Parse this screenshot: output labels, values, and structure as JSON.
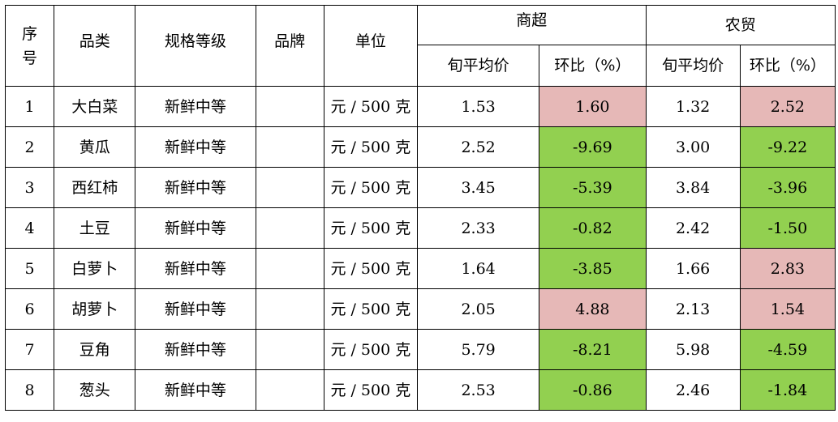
{
  "headers": {
    "seq_line1": "序",
    "seq_line2": "号",
    "category": "品类",
    "spec": "规格等级",
    "brand": "品牌",
    "unit": "单位",
    "supermarket": "商超",
    "market": "农贸",
    "avg_price": "旬平均价",
    "mom": "环比（%）"
  },
  "colors": {
    "increase": "#e6b8b7",
    "decrease": "#92d050"
  },
  "rows": [
    {
      "seq": "1",
      "category": "大白菜",
      "spec": "新鲜中等",
      "brand": "",
      "unit": "元 / 500 克",
      "sm_avg": "1.53",
      "sm_mom": "1.60",
      "sm_trend": "up",
      "mk_avg": "1.32",
      "mk_mom": "2.52",
      "mk_trend": "up"
    },
    {
      "seq": "2",
      "category": "黄瓜",
      "spec": "新鲜中等",
      "brand": "",
      "unit": "元 / 500 克",
      "sm_avg": "2.52",
      "sm_mom": "-9.69",
      "sm_trend": "down",
      "mk_avg": "3.00",
      "mk_mom": "-9.22",
      "mk_trend": "down"
    },
    {
      "seq": "3",
      "category": "西红柿",
      "spec": "新鲜中等",
      "brand": "",
      "unit": "元 / 500 克",
      "sm_avg": "3.45",
      "sm_mom": "-5.39",
      "sm_trend": "down",
      "mk_avg": "3.84",
      "mk_mom": "-3.96",
      "mk_trend": "down"
    },
    {
      "seq": "4",
      "category": "土豆",
      "spec": "新鲜中等",
      "brand": "",
      "unit": "元 / 500 克",
      "sm_avg": "2.33",
      "sm_mom": "-0.82",
      "sm_trend": "down",
      "mk_avg": "2.42",
      "mk_mom": "-1.50",
      "mk_trend": "down"
    },
    {
      "seq": "5",
      "category": "白萝卜",
      "spec": "新鲜中等",
      "brand": "",
      "unit": "元 / 500 克",
      "sm_avg": "1.64",
      "sm_mom": "-3.85",
      "sm_trend": "down",
      "mk_avg": "1.66",
      "mk_mom": "2.83",
      "mk_trend": "up"
    },
    {
      "seq": "6",
      "category": "胡萝卜",
      "spec": "新鲜中等",
      "brand": "",
      "unit": "元 / 500 克",
      "sm_avg": "2.05",
      "sm_mom": "4.88",
      "sm_trend": "up",
      "mk_avg": "2.13",
      "mk_mom": "1.54",
      "mk_trend": "up"
    },
    {
      "seq": "7",
      "category": "豆角",
      "spec": "新鲜中等",
      "brand": "",
      "unit": "元 / 500 克",
      "sm_avg": "5.79",
      "sm_mom": "-8.21",
      "sm_trend": "down",
      "mk_avg": "5.98",
      "mk_mom": "-4.59",
      "mk_trend": "down"
    },
    {
      "seq": "8",
      "category": "葱头",
      "spec": "新鲜中等",
      "brand": "",
      "unit": "元 / 500 克",
      "sm_avg": "2.53",
      "sm_mom": "-0.86",
      "sm_trend": "down",
      "mk_avg": "2.46",
      "mk_mom": "-1.84",
      "mk_trend": "down"
    }
  ]
}
